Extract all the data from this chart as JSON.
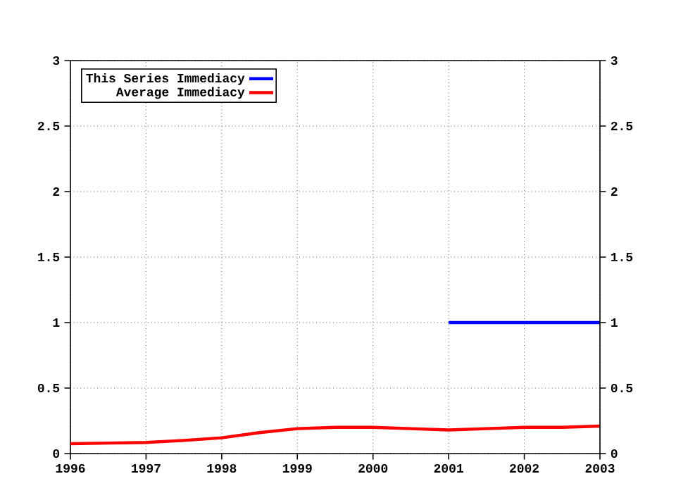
{
  "chart_data": {
    "type": "line",
    "series": [
      {
        "name": "This Series Immediacy",
        "color": "#0000ff",
        "x": [
          2001,
          2003
        ],
        "values": [
          1,
          1
        ]
      },
      {
        "name": "Average Immediacy",
        "color": "#ff0000",
        "x": [
          1996,
          1996.5,
          1997,
          1997.5,
          1998,
          1998.5,
          1999,
          1999.5,
          2000,
          2000.5,
          2001,
          2001.5,
          2002,
          2002.5,
          2003
        ],
        "values": [
          0.075,
          0.08,
          0.085,
          0.1,
          0.12,
          0.16,
          0.19,
          0.2,
          0.2,
          0.19,
          0.18,
          0.19,
          0.2,
          0.2,
          0.21
        ]
      }
    ],
    "xlim": [
      1996,
      2003
    ],
    "xticks": [
      1996,
      1997,
      1998,
      1999,
      2000,
      2001,
      2002,
      2003
    ],
    "ylim": [
      0,
      3
    ],
    "yticks": [
      0,
      0.5,
      1,
      1.5,
      2,
      2.5,
      3
    ],
    "y2lim": [
      0,
      3
    ],
    "y2ticks": [
      0,
      0.5,
      1,
      1.5,
      2,
      2.5,
      3
    ],
    "grid": true,
    "legend": "top left",
    "marker": "none",
    "line_style": "solid"
  }
}
